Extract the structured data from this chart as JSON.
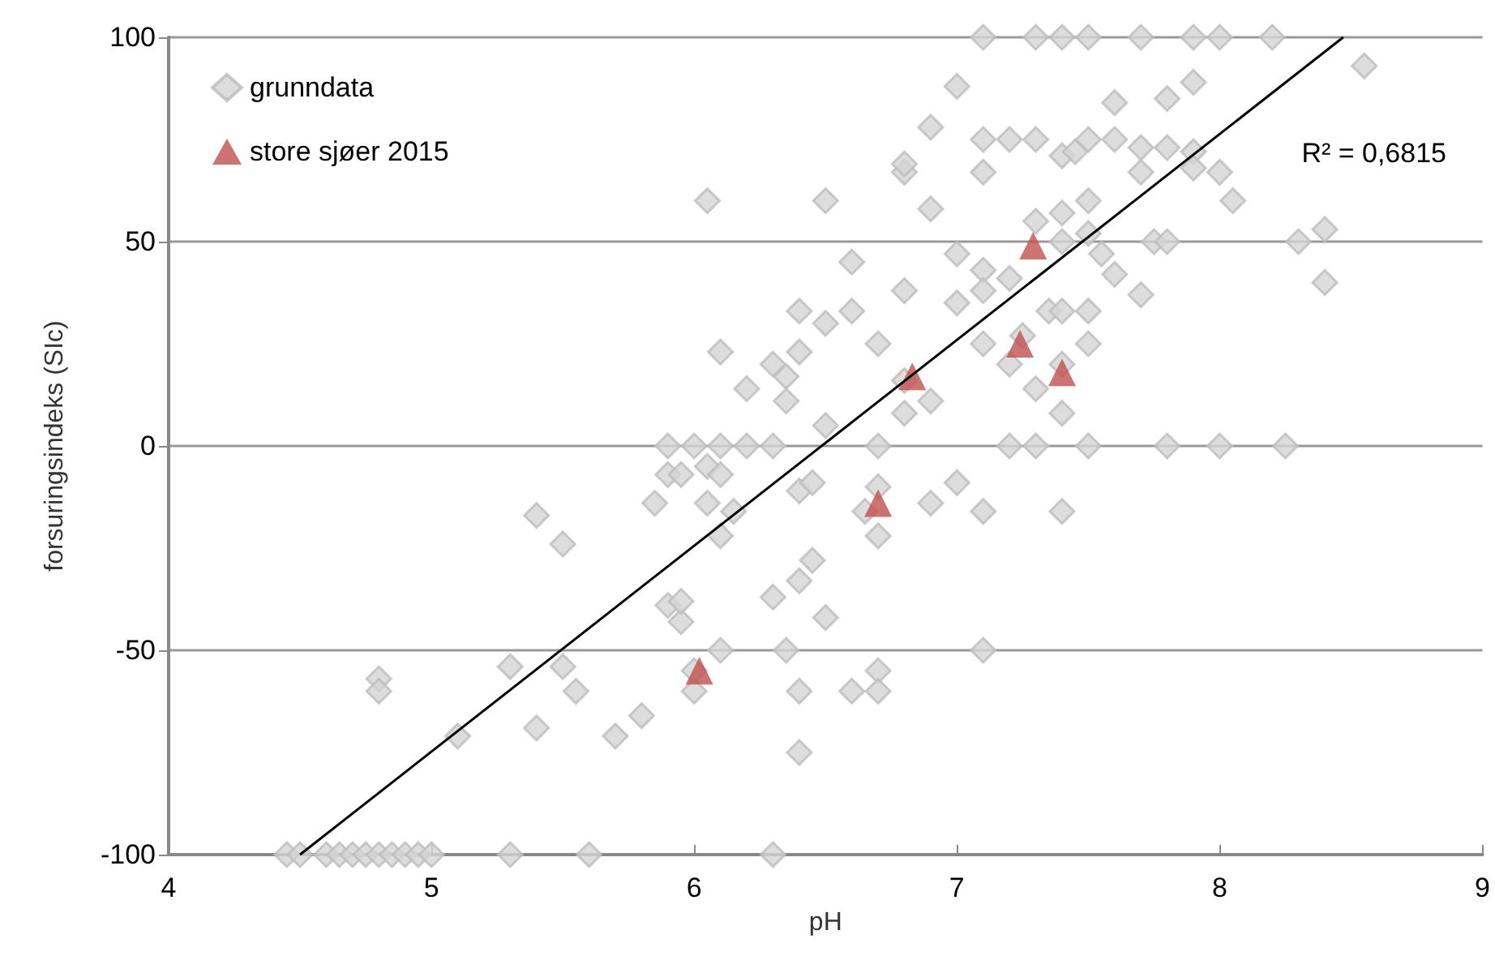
{
  "chart_data": {
    "type": "scatter",
    "xlabel": "pH",
    "ylabel": "forsuringsindeks (SIc)",
    "xlim": [
      4,
      9
    ],
    "xticks": [
      4,
      5,
      6,
      7,
      8,
      9
    ],
    "ylim": [
      -100,
      100
    ],
    "yticks": [
      -100,
      -50,
      0,
      50,
      100
    ],
    "grid": "y",
    "legend": "top left",
    "annotations": [
      "R² = 0,6815"
    ],
    "series": [
      {
        "name": "grunndata",
        "color": "#d4d4d4",
        "marker": "diamond",
        "x": [
          4.45,
          4.5,
          4.6,
          4.65,
          4.7,
          4.75,
          4.8,
          4.85,
          4.9,
          4.95,
          5.0,
          5.3,
          5.6,
          6.3,
          4.8,
          4.8,
          5.1,
          5.3,
          5.4,
          5.4,
          5.5,
          5.5,
          5.55,
          5.7,
          5.8,
          5.9,
          5.95,
          5.95,
          6.0,
          6.0,
          6.1,
          5.85,
          5.9,
          5.9,
          5.95,
          6.0,
          6.05,
          6.05,
          6.1,
          6.1,
          6.1,
          6.15,
          6.2,
          6.1,
          6.05,
          6.2,
          6.3,
          6.3,
          6.3,
          6.35,
          6.35,
          6.35,
          6.4,
          6.4,
          6.4,
          6.4,
          6.4,
          6.4,
          6.45,
          6.45,
          6.5,
          6.5,
          6.5,
          6.5,
          6.6,
          6.6,
          6.6,
          6.65,
          6.7,
          6.7,
          6.7,
          6.7,
          6.7,
          6.7,
          6.8,
          6.8,
          6.8,
          6.8,
          6.8,
          6.9,
          6.9,
          6.9,
          6.9,
          7.0,
          7.0,
          7.0,
          7.0,
          7.1,
          7.1,
          7.1,
          7.1,
          7.1,
          7.1,
          7.1,
          7.1,
          7.2,
          7.2,
          7.2,
          7.2,
          7.25,
          7.3,
          7.3,
          7.3,
          7.3,
          7.3,
          7.35,
          7.4,
          7.4,
          7.4,
          7.4,
          7.4,
          7.4,
          7.4,
          7.4,
          7.45,
          7.5,
          7.5,
          7.5,
          7.5,
          7.5,
          7.5,
          7.5,
          7.55,
          7.6,
          7.6,
          7.6,
          7.7,
          7.7,
          7.7,
          7.7,
          7.75,
          7.8,
          7.8,
          7.8,
          7.8,
          7.9,
          7.9,
          7.9,
          7.9,
          8.0,
          8.0,
          8.0,
          8.05,
          8.2,
          8.25,
          8.3,
          8.4,
          8.4,
          8.55
        ],
        "values": [
          -100,
          -100,
          -100,
          -100,
          -100,
          -100,
          -100,
          -100,
          -100,
          -100,
          -100,
          -100,
          -100,
          -100,
          -57,
          -60,
          -71,
          -54,
          -17,
          -69,
          -24,
          -54,
          -60,
          -71,
          -66,
          -39,
          -43,
          -38,
          -55,
          -60,
          -50,
          -14,
          -7,
          0,
          -7,
          0,
          -14,
          -5,
          0,
          -7,
          -22,
          -16,
          0,
          23,
          60,
          14,
          20,
          0,
          -37,
          11,
          17,
          -50,
          23,
          33,
          -11,
          -33,
          -60,
          -75,
          -28,
          -9,
          -42,
          5,
          30,
          60,
          33,
          45,
          -60,
          -16,
          0,
          -10,
          -22,
          -55,
          -60,
          25,
          8,
          16,
          38,
          67,
          69,
          -14,
          11,
          58,
          78,
          -9,
          35,
          47,
          88,
          100,
          67,
          75,
          43,
          38,
          25,
          -16,
          -50,
          0,
          20,
          41,
          75,
          27,
          100,
          75,
          55,
          14,
          0,
          33,
          100,
          71,
          57,
          50,
          33,
          20,
          8,
          -16,
          72,
          100,
          75,
          60,
          52,
          33,
          25,
          0,
          47,
          84,
          75,
          42,
          100,
          73,
          67,
          37,
          50,
          85,
          73,
          50,
          0,
          100,
          89,
          72,
          68,
          100,
          67,
          0,
          60,
          100,
          0,
          50,
          53,
          40,
          93
        ]
      },
      {
        "name": "store sjøer 2015",
        "color": "#c0504d",
        "marker": "triangle",
        "x": [
          6.02,
          6.7,
          6.83,
          7.24,
          7.29,
          7.4
        ],
        "values": [
          -55,
          -14,
          17,
          25,
          49,
          18
        ]
      },
      {
        "type": "line",
        "color": "#000000",
        "marker": "none",
        "line_style": "solid",
        "x": [
          4.5,
          8.47
        ],
        "values": [
          -100,
          100
        ]
      }
    ]
  }
}
